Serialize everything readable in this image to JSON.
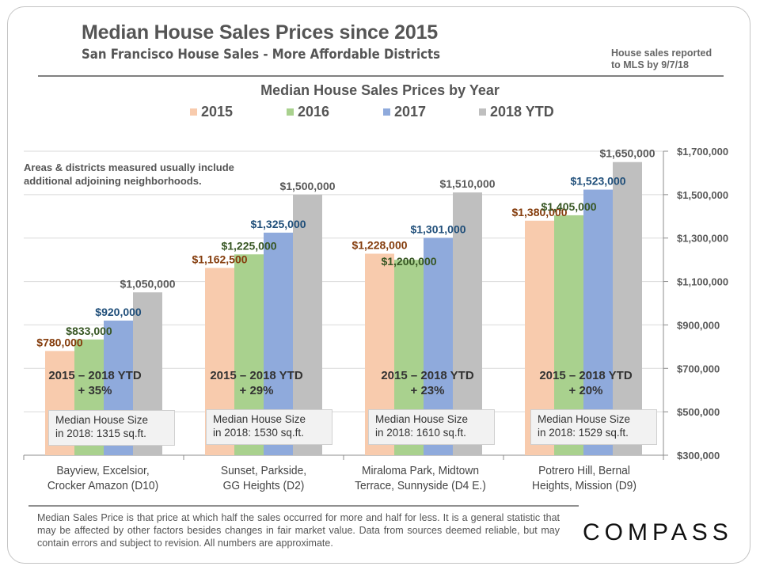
{
  "header": {
    "title": "Median House Sales Prices since 2015",
    "subtitle": "San Francisco House Sales - More Affordable Districts",
    "note_line1": "House sales reported",
    "note_line2": "to MLS by 9/7/18"
  },
  "areas_note": {
    "line1": "Areas & districts measured usually include",
    "line2": "additional adjoining neighborhoods."
  },
  "annotations": [
    {
      "change_line1": "2015 – 2018 YTD",
      "change_line2": "+ 35%",
      "size_line1": "Median House Size",
      "size_line2": "in 2018: 1315 sq.ft."
    },
    {
      "change_line1": "2015 – 2018 YTD",
      "change_line2": "+ 29%",
      "size_line1": "Median House Size",
      "size_line2": "in 2018: 1530 sq.ft."
    },
    {
      "change_line1": "2015 – 2018 YTD",
      "change_line2": "+ 23%",
      "size_line1": "Median House Size",
      "size_line2": "in 2018: 1610 sq.ft."
    },
    {
      "change_line1": "2015 – 2018 YTD",
      "change_line2": "+ 20%",
      "size_line1": "Median House Size",
      "size_line2": "in 2018: 1529 sq.ft."
    }
  ],
  "footer": {
    "disclaimer": "Median Sales Price is that price at which half the sales occurred for more and half for less. It is a general statistic that may be affected by other factors besides changes in fair market value. Data from sources deemed reliable, but may contain errors and subject to revision.  All numbers are approximate.",
    "logo": "COMPASS"
  },
  "chart_data": {
    "type": "bar",
    "title": "Median House Sales Prices by Year",
    "categories_line1": [
      "Bayview, Excelsior,",
      "Sunset, Parkside,",
      "Miraloma Park, Midtown",
      "Potrero Hill, Bernal"
    ],
    "categories_line2": [
      "Crocker Amazon (D10)",
      "GG Heights (D2)",
      "Terrace, Sunnyside (D4 E.)",
      "Heights, Mission (D9)"
    ],
    "categories": [
      "Bayview, Excelsior, Crocker Amazon (D10)",
      "Sunset, Parkside, GG Heights (D2)",
      "Miraloma Park, Midtown Terrace, Sunnyside (D4 E.)",
      "Potrero Hill, Bernal Heights, Mission (D9)"
    ],
    "series": [
      {
        "name": "2015",
        "color": "#f8cbad",
        "label_color": "#843c0c",
        "values": [
          780000,
          1162500,
          1228000,
          1380000
        ],
        "labels": [
          "$780,000",
          "$1,162,500",
          "$1,228,000",
          "$1,380,000"
        ]
      },
      {
        "name": "2016",
        "color": "#a9d18e",
        "label_color": "#375623",
        "values": [
          833000,
          1225000,
          1200000,
          1405000
        ],
        "labels": [
          "$833,000",
          "$1,225,000",
          "$1,200,000",
          "$1,405,000"
        ]
      },
      {
        "name": "2017",
        "color": "#8faadc",
        "label_color": "#1f4e79",
        "values": [
          920000,
          1325000,
          1301000,
          1523000
        ],
        "labels": [
          "$920,000",
          "$1,325,000",
          "$1,301,000",
          "$1,523,000"
        ]
      },
      {
        "name": "2018 YTD",
        "color": "#bfbfbf",
        "label_color": "#595959",
        "values": [
          1050000,
          1500000,
          1510000,
          1650000
        ],
        "labels": [
          "$1,050,000",
          "$1,500,000",
          "$1,510,000",
          "$1,650,000"
        ]
      }
    ],
    "xlabel": "",
    "ylabel": "",
    "ylim": [
      300000,
      1700000
    ],
    "yticks": [
      300000,
      500000,
      700000,
      900000,
      1100000,
      1300000,
      1500000,
      1700000
    ],
    "ytick_labels": [
      "$300,000",
      "$500,000",
      "$700,000",
      "$900,000",
      "$1,100,000",
      "$1,300,000",
      "$1,500,000",
      "$1,700,000"
    ],
    "y_axis_side": "right",
    "grid": true,
    "legend_position": "top-center"
  }
}
